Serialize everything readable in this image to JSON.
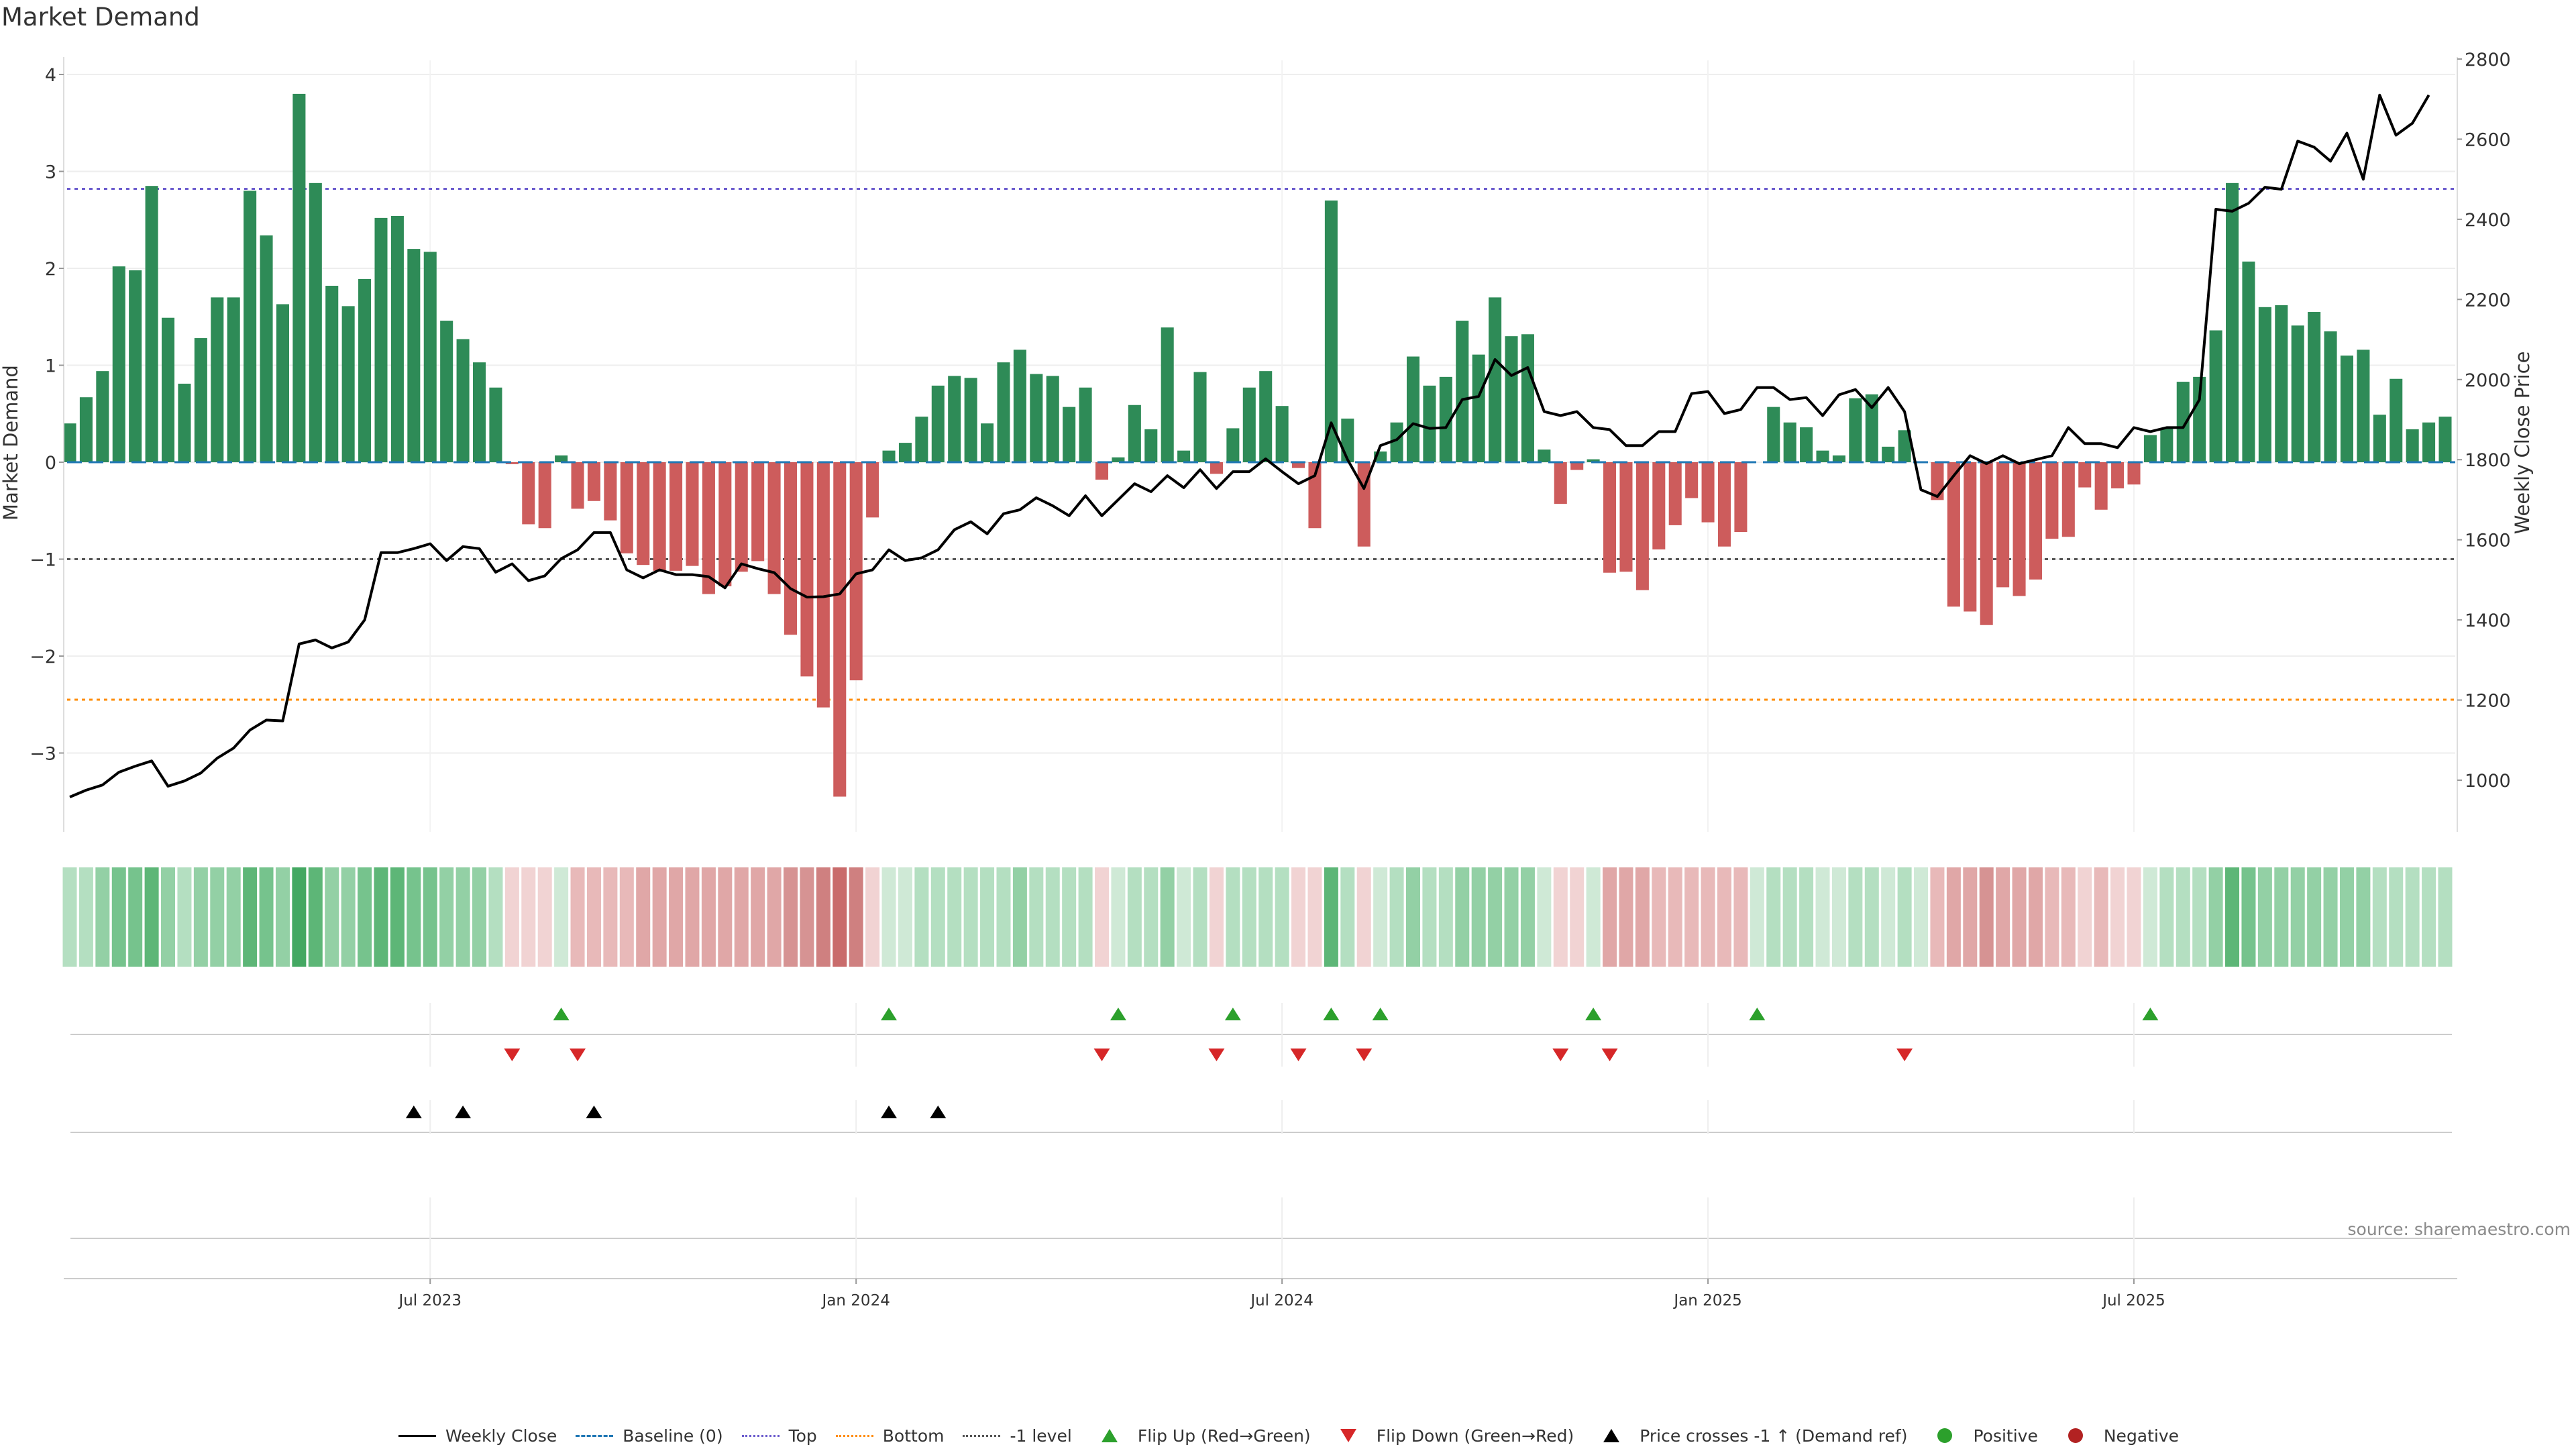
{
  "title": "Market Demand",
  "source": "source: sharemaestro.com",
  "colors": {
    "positive": "#2e8b57",
    "negative": "#cd5c5c",
    "price": "#000000",
    "baseline": "#1f77b4",
    "top": "#6a5acd",
    "bottom": "#ff8c00",
    "minus_one": "#555555",
    "flip_up": "#2ca02c",
    "flip_down": "#d62728",
    "cross": "#000000",
    "dot_positive": "#2ca02c",
    "dot_negative": "#b22222"
  },
  "chart_data": {
    "type": "bar",
    "title": "Market Demand",
    "ylabel": "Market Demand",
    "y2label": "Weekly Close Price",
    "ylim": [
      -3.8,
      4.2
    ],
    "y2lim": [
      880,
      2880
    ],
    "yticks": [
      4,
      3,
      2,
      1,
      0,
      -1,
      -2,
      -3
    ],
    "ytick_labels": [
      "4",
      "3",
      "2",
      "1",
      "0",
      "−1",
      "−2",
      "−3"
    ],
    "y2ticks": [
      2800,
      2600,
      2400,
      2200,
      2000,
      1800,
      1600,
      1400,
      1200,
      1000
    ],
    "y2tick_labels": [
      "2800",
      "2600",
      "2400",
      "2200",
      "2000",
      "1800",
      "1600",
      "1400",
      "1200",
      "1000"
    ],
    "xtick_labels": [
      "Jul 2023",
      "Jan 2024",
      "Jul 2024",
      "Jan 2025",
      "Jul 2025"
    ],
    "xtick_week_index": [
      22,
      48,
      74,
      100,
      126
    ],
    "top_level": 2.82,
    "bottom_level": -2.45,
    "minus_one_level": -1,
    "baseline_level": 0,
    "demand": [
      0.4,
      0.67,
      0.94,
      2.02,
      1.98,
      2.85,
      1.49,
      0.81,
      1.28,
      1.7,
      1.7,
      2.8,
      2.34,
      1.63,
      3.8,
      2.88,
      1.82,
      1.61,
      1.89,
      2.52,
      2.54,
      2.2,
      2.17,
      1.46,
      1.27,
      1.03,
      0.77,
      -0.02,
      -0.64,
      -0.68,
      0.07,
      -0.48,
      -0.4,
      -0.6,
      -0.94,
      -1.06,
      -1.12,
      -1.12,
      -1.07,
      -1.36,
      -1.28,
      -1.13,
      -1.02,
      -1.36,
      -1.78,
      -2.21,
      -2.53,
      -3.45,
      -2.25,
      -0.57,
      0.12,
      0.2,
      0.47,
      0.79,
      0.89,
      0.87,
      0.4,
      1.03,
      1.16,
      0.91,
      0.89,
      0.57,
      0.77,
      -0.18,
      0.05,
      0.59,
      0.34,
      1.39,
      0.12,
      0.93,
      -0.12,
      0.35,
      0.77,
      0.94,
      0.58,
      -0.06,
      -0.68,
      2.7,
      0.45,
      -0.87,
      0.11,
      0.41,
      1.09,
      0.79,
      0.88,
      1.46,
      1.11,
      1.7,
      1.3,
      1.32,
      0.13,
      -0.43,
      -0.08,
      0.03,
      -1.14,
      -1.13,
      -1.32,
      -0.9,
      -0.65,
      -0.37,
      -0.62,
      -0.87,
      -0.72,
      0.0,
      0.57,
      0.41,
      0.36,
      0.12,
      0.07,
      0.66,
      0.7,
      0.16,
      0.33,
      0.0,
      -0.39,
      -1.49,
      -1.54,
      -1.68,
      -1.29,
      -1.38,
      -1.21,
      -0.79,
      -0.77,
      -0.26,
      -0.49,
      -0.27,
      -0.23,
      0.28,
      0.35,
      0.83,
      0.88,
      1.36,
      2.88,
      2.07,
      1.6,
      1.62,
      1.41,
      1.55,
      1.35,
      1.1,
      1.16,
      0.49,
      0.86,
      0.34,
      0.41,
      0.47
    ],
    "price": [
      958,
      975,
      988,
      1020,
      1035,
      1048,
      985,
      998,
      1018,
      1055,
      1080,
      1125,
      1150,
      1148,
      1340,
      1350,
      1330,
      1345,
      1400,
      1568,
      1568,
      1578,
      1590,
      1548,
      1583,
      1578,
      1519,
      1540,
      1498,
      1510,
      1553,
      1575,
      1618,
      1618,
      1525,
      1505,
      1525,
      1513,
      1513,
      1508,
      1480,
      1540,
      1528,
      1518,
      1478,
      1457,
      1458,
      1465,
      1515,
      1525,
      1575,
      1548,
      1555,
      1575,
      1625,
      1645,
      1615,
      1665,
      1675,
      1705,
      1685,
      1660,
      1710,
      1660,
      1700,
      1740,
      1720,
      1760,
      1730,
      1775,
      1728,
      1770,
      1770,
      1802,
      1770,
      1740,
      1760,
      1892,
      1800,
      1728,
      1835,
      1850,
      1890,
      1878,
      1880,
      1950,
      1958,
      2050,
      2010,
      2030,
      1920,
      1910,
      1920,
      1880,
      1875,
      1835,
      1835,
      1870,
      1870,
      1965,
      1970,
      1915,
      1925,
      1980,
      1980,
      1950,
      1955,
      1910,
      1962,
      1975,
      1930,
      1980,
      1920,
      1725,
      1708,
      1760,
      1810,
      1790,
      1810,
      1790,
      1800,
      1810,
      1880,
      1840,
      1840,
      1830,
      1880,
      1870,
      1880,
      1880,
      1950,
      2425,
      2420,
      2440,
      2480,
      2475,
      2595,
      2580,
      2545,
      2615,
      2500,
      2710,
      2610,
      2640,
      2710
    ],
    "heat_levels": [
      2,
      2,
      3,
      4,
      4,
      5,
      3,
      2,
      3,
      3,
      3,
      5,
      4,
      3,
      6,
      5,
      3,
      3,
      4,
      5,
      5,
      4,
      4,
      3,
      3,
      3,
      2,
      -1,
      -1,
      -1,
      1,
      -2,
      -2,
      -2,
      -2,
      -3,
      -3,
      -3,
      -3,
      -3,
      -3,
      -3,
      -3,
      -3,
      -4,
      -4,
      -5,
      -6,
      -5,
      -1,
      1,
      1,
      2,
      2,
      2,
      2,
      2,
      2,
      3,
      2,
      2,
      2,
      2,
      -1,
      1,
      2,
      2,
      3,
      1,
      2,
      -1,
      2,
      2,
      2,
      2,
      -1,
      -1,
      5,
      2,
      -1,
      1,
      2,
      3,
      2,
      2,
      3,
      3,
      3,
      3,
      3,
      1,
      -1,
      -1,
      1,
      -3,
      -3,
      -3,
      -2,
      -2,
      -2,
      -2,
      -2,
      -2,
      1,
      2,
      2,
      2,
      1,
      1,
      2,
      2,
      1,
      2,
      1,
      -2,
      -3,
      -3,
      -4,
      -3,
      -3,
      -3,
      -2,
      -2,
      -1,
      -2,
      -1,
      -1,
      1,
      2,
      2,
      2,
      3,
      5,
      4,
      3,
      3,
      3,
      3,
      3,
      3,
      3,
      2,
      2,
      2,
      2,
      2
    ],
    "flip_up_weeks": [
      30,
      50,
      64,
      71,
      77,
      80,
      93,
      103,
      127
    ],
    "flip_down_weeks": [
      27,
      31,
      63,
      70,
      75,
      79,
      91,
      94,
      112
    ],
    "cross_up_weeks": [
      21,
      24,
      32,
      50,
      53
    ]
  },
  "legend": [
    {
      "label": "Weekly Close",
      "symbol": "solid-line",
      "color": "#000000"
    },
    {
      "label": "Baseline (0)",
      "symbol": "dashed-line",
      "color": "#1f77b4"
    },
    {
      "label": "Top",
      "symbol": "dotted-line",
      "color": "#6a5acd"
    },
    {
      "label": "Bottom",
      "symbol": "dotted-line",
      "color": "#ff8c00"
    },
    {
      "label": "-1 level",
      "symbol": "dotted-line",
      "color": "#555555"
    },
    {
      "label": "Flip Up (Red→Green)",
      "symbol": "triangle-up",
      "color": "#2ca02c"
    },
    {
      "label": "Flip Down (Green→Red)",
      "symbol": "triangle-down",
      "color": "#d62728"
    },
    {
      "label": "Price crosses -1 ↑ (Demand ref)",
      "symbol": "triangle-up",
      "color": "#000000"
    },
    {
      "label": "Positive",
      "symbol": "dot",
      "color": "#2ca02c"
    },
    {
      "label": "Negative",
      "symbol": "dot",
      "color": "#b22222"
    }
  ]
}
